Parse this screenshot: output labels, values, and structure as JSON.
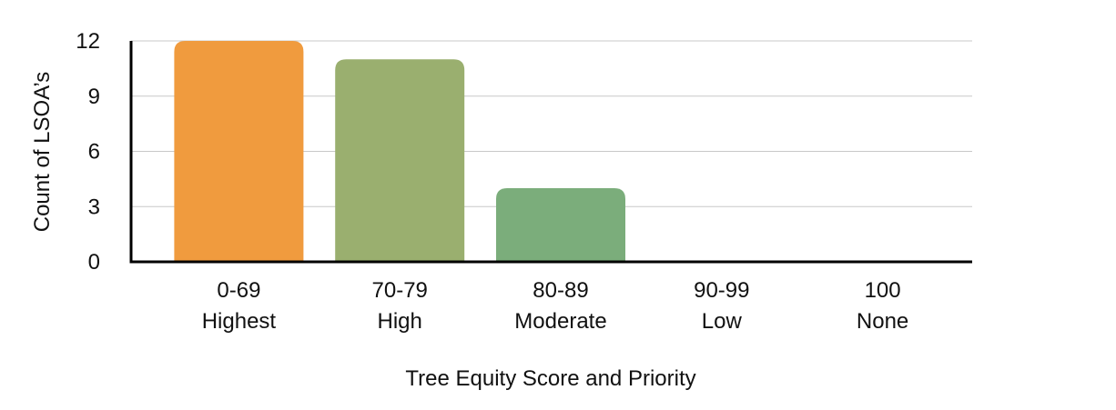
{
  "chart_data": {
    "type": "bar",
    "categories": [
      [
        "0-69",
        "Highest"
      ],
      [
        "70-79",
        "High"
      ],
      [
        "80-89",
        "Moderate"
      ],
      [
        "90-99",
        "Low"
      ],
      [
        "100",
        "None"
      ]
    ],
    "values": [
      12,
      11,
      4,
      0,
      0
    ],
    "bar_colors": [
      "#F09B3E",
      "#9AAF6F",
      "#7BAD7B",
      "#7BAD7B",
      "#7BAD7B"
    ],
    "xlabel": "Tree Equity Score and Priority",
    "ylabel": "Count of LSOA’s",
    "ylim": [
      0,
      12
    ],
    "yticks": [
      0,
      3,
      6,
      9,
      12
    ],
    "grid": true,
    "legend": "none"
  }
}
